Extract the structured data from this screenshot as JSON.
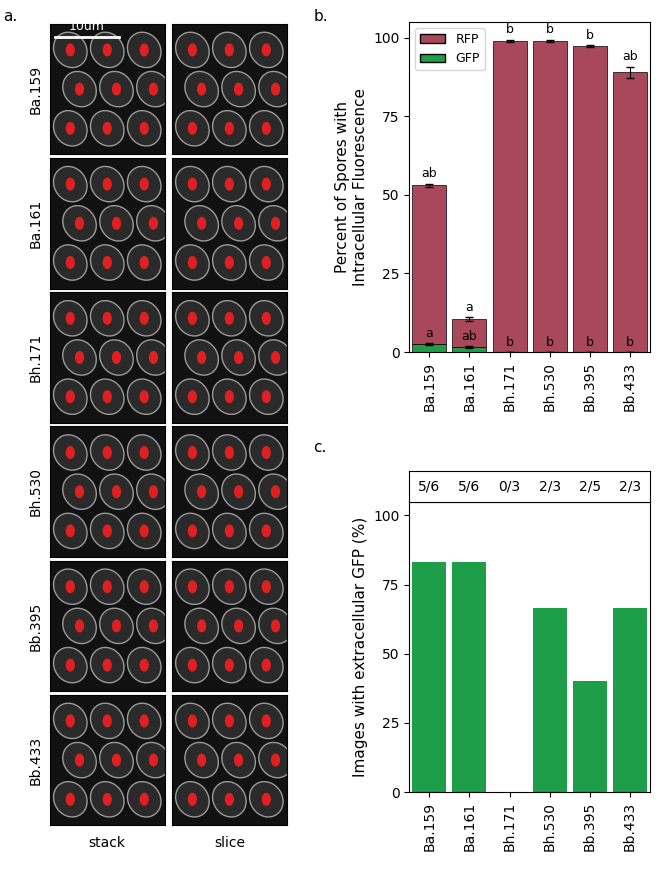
{
  "image_panel": {
    "label": "a.",
    "scale_bar": "10um",
    "rows": [
      "Ba.159",
      "Ba.161",
      "Bh.171",
      "Bh.530",
      "Bb.395",
      "Bb.433"
    ],
    "columns": [
      "stack",
      "slice"
    ]
  },
  "chart_data": [
    {
      "type": "bar",
      "panel_label": "b.",
      "stacked": true,
      "categories": [
        "Ba.159",
        "Ba.161",
        "Bh.171",
        "Bh.530",
        "Bb.395",
        "Bb.433"
      ],
      "y_label": "Percent of Spores with\nIntracellular Fluorescence",
      "ylim": [
        0,
        105
      ],
      "yticks": [
        0,
        25,
        50,
        75,
        100
      ],
      "legend": "upper left",
      "series": [
        {
          "name": "GFP",
          "color": "#1f9e4a",
          "values": [
            2.5,
            1.5,
            0,
            0,
            0,
            0
          ],
          "errors": [
            0.3,
            0.3,
            0,
            0,
            0,
            0
          ],
          "annotations": [
            "a",
            "ab",
            "b",
            "b",
            "b",
            "b"
          ]
        },
        {
          "name": "RFP",
          "color": "#a8485a",
          "values": [
            50.5,
            9.0,
            99.0,
            99.0,
            97.3,
            89.0
          ],
          "errors": [
            0.6,
            0.6,
            0.4,
            0.4,
            0.3,
            1.8
          ],
          "annotations": [
            "ab",
            "a",
            "b",
            "b",
            "b",
            "ab"
          ]
        }
      ]
    },
    {
      "type": "bar",
      "panel_label": "c.",
      "categories": [
        "Ba.159",
        "Ba.161",
        "Bh.171",
        "Bh.530",
        "Bb.395",
        "Bb.433"
      ],
      "values": [
        83.3,
        83.3,
        0,
        66.7,
        40,
        66.7
      ],
      "value_labels": [
        "5/6",
        "5/6",
        "0/3",
        "2/3",
        "2/5",
        "2/3"
      ],
      "data_labels": true,
      "color": "#1f9e4a",
      "y_label": "Images with extracellular GFP (%)",
      "ylim": [
        0,
        105
      ],
      "yticks": [
        0,
        25,
        50,
        75,
        100
      ]
    }
  ]
}
